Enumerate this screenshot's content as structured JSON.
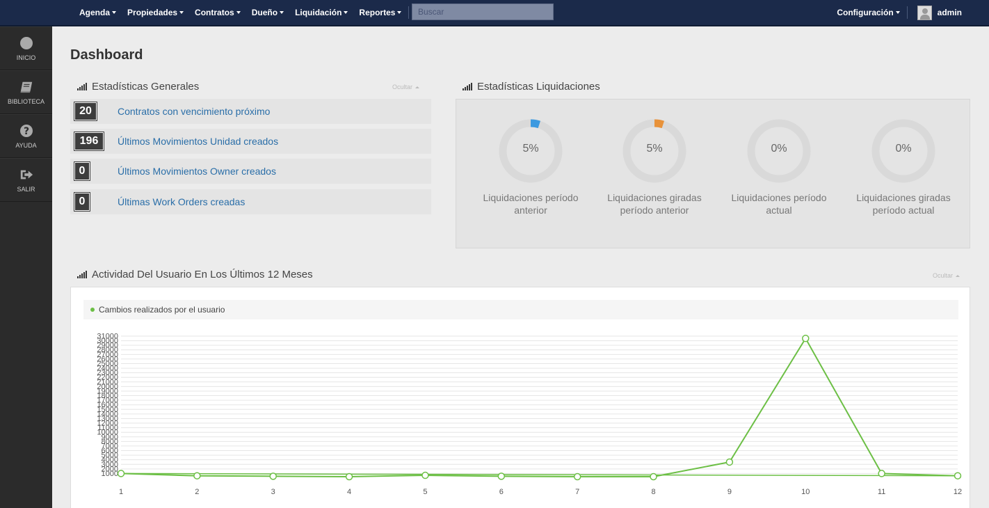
{
  "nav": {
    "items": [
      "Agenda",
      "Propiedades",
      "Contratos",
      "Dueño",
      "Liquidación",
      "Reportes"
    ],
    "search_placeholder": "Buscar",
    "config_label": "Configuración",
    "user_name": "admin"
  },
  "sidebar": {
    "items": [
      {
        "label": "INICIO",
        "icon": "circle-icon"
      },
      {
        "label": "BIBLIOTECA",
        "icon": "book-icon"
      },
      {
        "label": "AYUDA",
        "icon": "question-icon"
      },
      {
        "label": "SALIR",
        "icon": "sign-out-icon"
      }
    ]
  },
  "page": {
    "title": "Dashboard"
  },
  "stats": {
    "title": "Estadísticas Generales",
    "hide_label": "Ocultar",
    "rows": [
      {
        "count": "20",
        "label": "Contratos con vencimiento próximo"
      },
      {
        "count": "196",
        "label": "Últimos Movimientos Unidad creados"
      },
      {
        "count": "0",
        "label": "Últimos Movimientos Owner creados"
      },
      {
        "count": "0",
        "label": "Últimas Work Orders creadas"
      }
    ]
  },
  "liquidaciones": {
    "title": "Estadísticas Liquidaciones",
    "gauges": [
      {
        "percent_label": "5%",
        "value": 5,
        "color": "#3d9ae0",
        "label1": "Liquidaciones período",
        "label2": "anterior"
      },
      {
        "percent_label": "5%",
        "value": 5,
        "color": "#e8923a",
        "label1": "Liquidaciones giradas",
        "label2": "período anterior"
      },
      {
        "percent_label": "0%",
        "value": 0,
        "color": "#3d9ae0",
        "label1": "Liquidaciones período",
        "label2": "actual"
      },
      {
        "percent_label": "0%",
        "value": 0,
        "color": "#3d9ae0",
        "label1": "Liquidaciones giradas",
        "label2": "período actual"
      }
    ]
  },
  "activity": {
    "title": "Actividad Del Usuario En Los Últimos 12 Meses",
    "hide_label": "Ocultar"
  },
  "chart_data": {
    "type": "line",
    "x": [
      1,
      2,
      3,
      4,
      5,
      6,
      7,
      8,
      9,
      10,
      11,
      12
    ],
    "series": [
      {
        "name": "Cambios realizados por el usuario",
        "color": "#6cbf45",
        "values": [
          1000,
          500,
          400,
          300,
          600,
          400,
          300,
          300,
          3500,
          30500,
          1000,
          500
        ]
      }
    ],
    "yticks": [
      1000,
      2000,
      3000,
      4000,
      5000,
      6000,
      7000,
      8000,
      9000,
      10000,
      11000,
      12000,
      13000,
      14000,
      15000,
      16000,
      17000,
      18000,
      19000,
      20000,
      21000,
      22000,
      23000,
      24000,
      25000,
      26000,
      27000,
      28000,
      29000,
      30000,
      31000
    ],
    "ylim": [
      0,
      31000
    ],
    "grid": true,
    "legend": "top-left"
  }
}
